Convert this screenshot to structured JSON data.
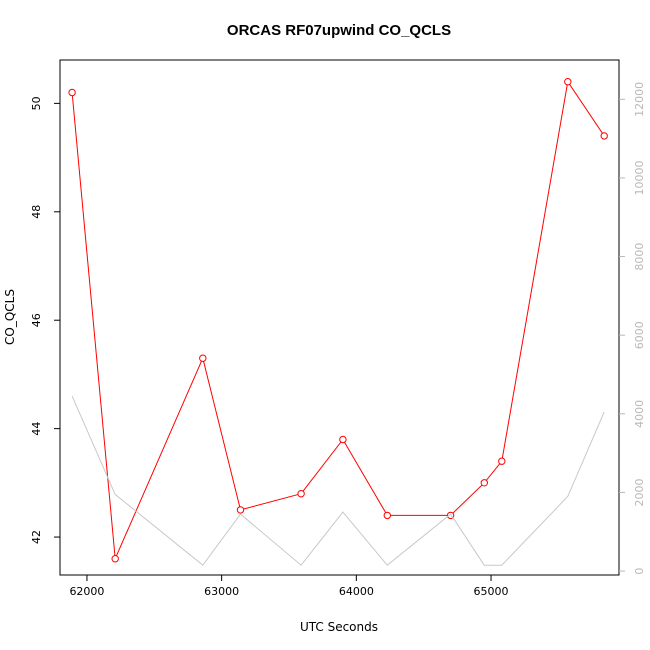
{
  "chart_data": {
    "type": "line",
    "title": "ORCAS RF07upwind CO_QCLS",
    "xlabel": "UTC Seconds",
    "ylabel": "CO_QCLS",
    "xlim": [
      61800,
      65950
    ],
    "ylim": [
      41.3,
      50.8
    ],
    "y2lim": [
      -100,
      13000
    ],
    "x_ticks": [
      62000,
      63000,
      64000,
      65000
    ],
    "y_ticks": [
      42,
      44,
      46,
      48,
      50
    ],
    "y2_ticks": [
      0,
      2000,
      4000,
      6000,
      8000,
      10000,
      12000
    ],
    "series": [
      {
        "color": "#ff0000",
        "axis": "left",
        "markers": "open-circle",
        "x": [
          61890,
          62210,
          62860,
          63140,
          63590,
          63900,
          64230,
          64700,
          64950,
          65080,
          65570,
          65840
        ],
        "y": [
          50.2,
          41.6,
          45.3,
          42.5,
          42.8,
          43.8,
          42.4,
          42.4,
          43.0,
          43.4,
          50.4,
          49.4
        ]
      },
      {
        "color": "#c8c8c8",
        "axis": "right",
        "markers": "none",
        "x": [
          61890,
          62210,
          62860,
          63140,
          63590,
          63900,
          64230,
          64700,
          64950,
          65080,
          65570,
          65840
        ],
        "y": [
          4450,
          1950,
          150,
          1450,
          150,
          1500,
          150,
          1450,
          150,
          150,
          1900,
          4050
        ]
      }
    ]
  }
}
